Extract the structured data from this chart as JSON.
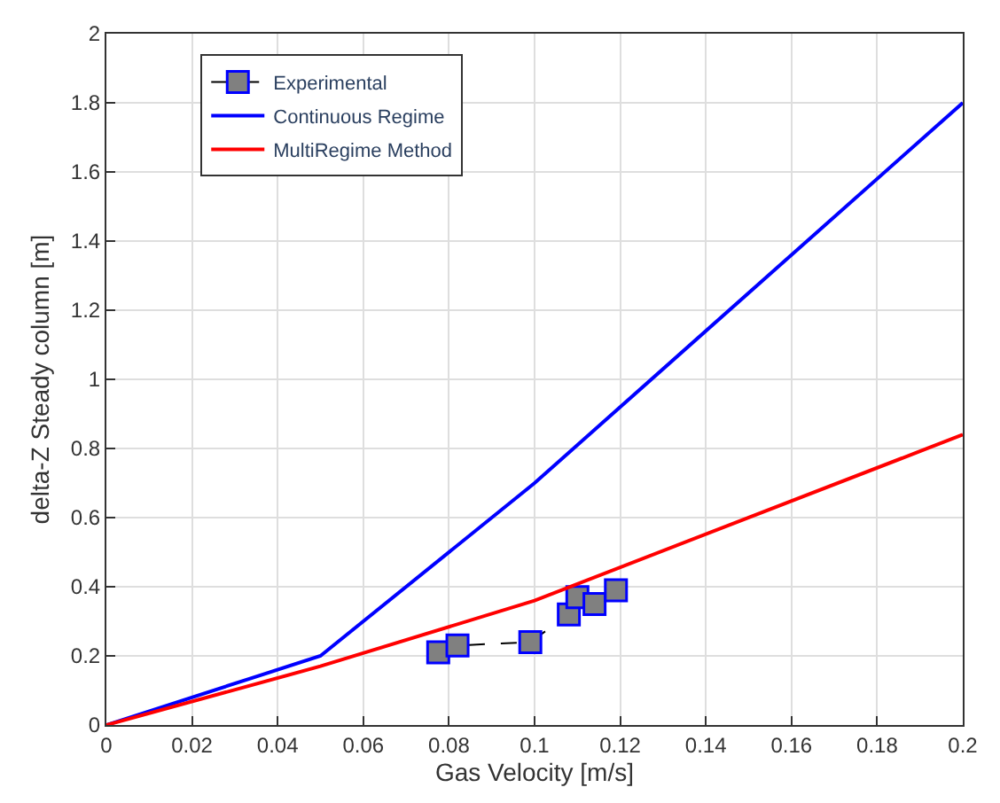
{
  "chart_data": {
    "type": "line",
    "xlabel": "Gas Velocity [m/s]",
    "ylabel": "delta-Z Steady column [m]",
    "xlim": [
      0,
      0.2
    ],
    "xticks": [
      0,
      0.02,
      0.04,
      0.06,
      0.08,
      0.1,
      0.12,
      0.14,
      0.16,
      0.18,
      0.2
    ],
    "ylim": [
      0,
      2
    ],
    "yticks": [
      0,
      0.2,
      0.4,
      0.6,
      0.8,
      1,
      1.2,
      1.4,
      1.6,
      1.8,
      2
    ],
    "grid": true,
    "legend": "top left",
    "series": [
      {
        "name": "Experimental",
        "color": "#808080",
        "marker": "square",
        "line_style": "dashed",
        "x": [
          0.0775,
          0.082,
          0.099,
          0.108,
          0.11,
          0.114,
          0.119
        ],
        "values": [
          0.21,
          0.23,
          0.24,
          0.32,
          0.37,
          0.35,
          0.39
        ]
      },
      {
        "name": "Continuous Regime",
        "color": "#0000ff",
        "marker": "none",
        "line_style": "solid",
        "x": [
          0,
          0.05,
          0.1,
          0.2
        ],
        "values": [
          0,
          0.2,
          0.7,
          1.8
        ]
      },
      {
        "name": "MultiRegime Method",
        "color": "#ff0000",
        "marker": "none",
        "line_style": "solid",
        "x": [
          0,
          0.05,
          0.1,
          0.2
        ],
        "values": [
          0,
          0.17,
          0.36,
          0.84
        ]
      }
    ]
  }
}
